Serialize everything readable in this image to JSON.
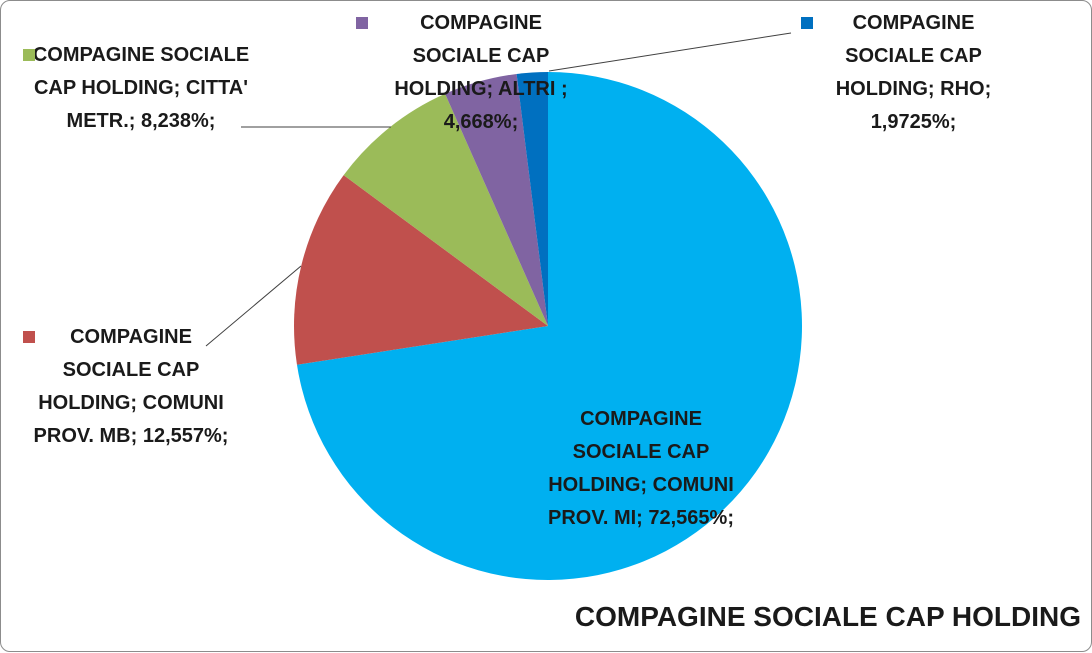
{
  "chart_data": {
    "type": "pie",
    "title": "COMPAGINE SOCIALE CAP HOLDING",
    "values": [
      72.565,
      12.557,
      8.238,
      4.668,
      1.9725
    ],
    "value_labels": [
      "COMPAGINE SOCIALE CAP HOLDING; COMUNI PROV. MI; 72,565%;",
      "COMPAGINE SOCIALE CAP HOLDING; COMUNI PROV. MB; 12,557%;",
      "COMPAGINE SOCIALE CAP HOLDING; CITTA' METR.; 8,238%;",
      "COMPAGINE SOCIALE CAP HOLDING; ALTRI ; 4,668%;",
      "COMPAGINE SOCIALE CAP HOLDING; RHO; 1,9725%;"
    ],
    "colors": [
      "#00b0f0",
      "#c0504d",
      "#9bbb59",
      "#8064a2",
      "#0070c0"
    ]
  }
}
